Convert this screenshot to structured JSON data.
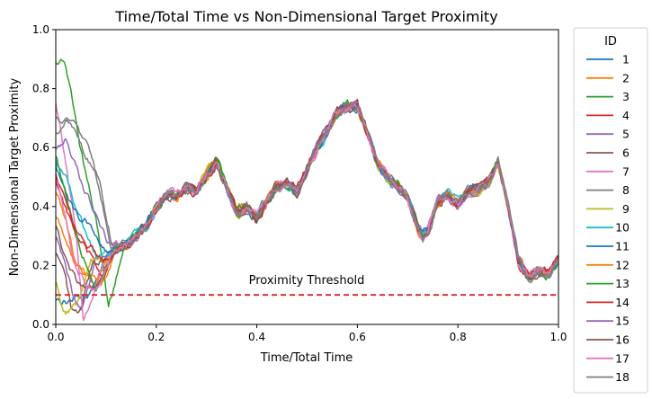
{
  "chart_data": {
    "type": "line",
    "title": "Time/Total Time vs Non-Dimensional Target Proximity",
    "xlabel": "Time/Total Time",
    "ylabel": "Non-Dimensional Target Proximity",
    "xlim": [
      0,
      1
    ],
    "ylim": [
      0,
      1
    ],
    "xticks": [
      "0.0",
      "0.2",
      "0.4",
      "0.6",
      "0.8",
      "1.0"
    ],
    "yticks": [
      "0.0",
      "0.2",
      "0.4",
      "0.6",
      "0.8",
      "1.0"
    ],
    "grid": false,
    "legend": {
      "title": "ID",
      "placement": "outside-right"
    },
    "threshold": {
      "value": 0.1,
      "label": "Proximity Threshold",
      "color": "#d62728",
      "style": "dashed"
    },
    "shared_curve": {
      "x": [
        0.1,
        0.12,
        0.14,
        0.16,
        0.18,
        0.2,
        0.22,
        0.24,
        0.26,
        0.28,
        0.3,
        0.32,
        0.34,
        0.36,
        0.38,
        0.4,
        0.42,
        0.44,
        0.46,
        0.48,
        0.5,
        0.52,
        0.54,
        0.56,
        0.58,
        0.6,
        0.62,
        0.64,
        0.66,
        0.68,
        0.7,
        0.72,
        0.73,
        0.74,
        0.76,
        0.78,
        0.8,
        0.82,
        0.84,
        0.86,
        0.88,
        0.9,
        0.92,
        0.94,
        0.96,
        0.98,
        1.0
      ],
      "y": [
        0.22,
        0.26,
        0.27,
        0.3,
        0.33,
        0.39,
        0.44,
        0.44,
        0.47,
        0.45,
        0.51,
        0.55,
        0.46,
        0.38,
        0.4,
        0.36,
        0.42,
        0.47,
        0.48,
        0.45,
        0.53,
        0.6,
        0.66,
        0.72,
        0.74,
        0.74,
        0.65,
        0.55,
        0.5,
        0.47,
        0.43,
        0.33,
        0.3,
        0.32,
        0.42,
        0.44,
        0.41,
        0.45,
        0.46,
        0.48,
        0.55,
        0.4,
        0.22,
        0.16,
        0.18,
        0.17,
        0.22
      ]
    },
    "series": [
      {
        "name": "1",
        "color": "#1f77b4",
        "start": [
          [
            0.0,
            0.09
          ],
          [
            0.02,
            0.08
          ],
          [
            0.04,
            0.09
          ],
          [
            0.07,
            0.11
          ]
        ]
      },
      {
        "name": "2",
        "color": "#ff7f0e",
        "start": [
          [
            0.0,
            0.37
          ],
          [
            0.02,
            0.28
          ],
          [
            0.04,
            0.2
          ],
          [
            0.06,
            0.17
          ],
          [
            0.08,
            0.14
          ]
        ]
      },
      {
        "name": "3",
        "color": "#2ca02c",
        "start": [
          [
            0.0,
            0.89
          ],
          [
            0.01,
            0.91
          ],
          [
            0.02,
            0.88
          ],
          [
            0.04,
            0.7
          ],
          [
            0.06,
            0.5
          ],
          [
            0.08,
            0.35
          ],
          [
            0.095,
            0.2
          ],
          [
            0.105,
            0.07
          ]
        ]
      },
      {
        "name": "4",
        "color": "#d62728",
        "start": [
          [
            0.0,
            0.49
          ],
          [
            0.02,
            0.4
          ],
          [
            0.04,
            0.3
          ],
          [
            0.07,
            0.22
          ],
          [
            0.09,
            0.17
          ]
        ]
      },
      {
        "name": "5",
        "color": "#9467bd",
        "start": [
          [
            0.0,
            0.3
          ],
          [
            0.02,
            0.2
          ],
          [
            0.035,
            0.1
          ],
          [
            0.05,
            0.05
          ]
        ]
      },
      {
        "name": "6",
        "color": "#8c564b",
        "start": [
          [
            0.0,
            0.24
          ],
          [
            0.02,
            0.14
          ],
          [
            0.03,
            0.05
          ],
          [
            0.045,
            0.03
          ]
        ]
      },
      {
        "name": "7",
        "color": "#e377c2",
        "start": [
          [
            0.0,
            0.75
          ],
          [
            0.02,
            0.55
          ],
          [
            0.04,
            0.3
          ],
          [
            0.05,
            0.1
          ],
          [
            0.055,
            0.01
          ],
          [
            0.065,
            0.06
          ]
        ]
      },
      {
        "name": "8",
        "color": "#7f7f7f",
        "start": [
          [
            0.0,
            0.7
          ],
          [
            0.02,
            0.7
          ],
          [
            0.05,
            0.62
          ],
          [
            0.08,
            0.5
          ],
          [
            0.1,
            0.35
          ],
          [
            0.11,
            0.26
          ]
        ]
      },
      {
        "name": "9",
        "color": "#bcbd22",
        "start": [
          [
            0.0,
            0.14
          ],
          [
            0.01,
            0.08
          ],
          [
            0.02,
            0.05
          ],
          [
            0.04,
            0.06
          ]
        ]
      },
      {
        "name": "10",
        "color": "#17becf",
        "start": [
          [
            0.0,
            0.55
          ],
          [
            0.02,
            0.5
          ],
          [
            0.04,
            0.4
          ],
          [
            0.06,
            0.3
          ],
          [
            0.08,
            0.24
          ]
        ]
      },
      {
        "name": "11",
        "color": "#1f77b4",
        "start": [
          [
            0.0,
            0.53
          ],
          [
            0.03,
            0.4
          ],
          [
            0.05,
            0.35
          ],
          [
            0.07,
            0.35
          ],
          [
            0.09,
            0.28
          ]
        ]
      },
      {
        "name": "12",
        "color": "#ff7f0e",
        "start": [
          [
            0.0,
            0.46
          ],
          [
            0.02,
            0.35
          ],
          [
            0.04,
            0.2
          ],
          [
            0.06,
            0.16
          ],
          [
            0.09,
            0.15
          ]
        ]
      },
      {
        "name": "13",
        "color": "#2ca02c",
        "start": [
          [
            0.0,
            0.58
          ],
          [
            0.02,
            0.44
          ],
          [
            0.04,
            0.3
          ],
          [
            0.06,
            0.2
          ],
          [
            0.08,
            0.12
          ]
        ]
      },
      {
        "name": "14",
        "color": "#d62728",
        "start": [
          [
            0.0,
            0.52
          ],
          [
            0.02,
            0.4
          ],
          [
            0.04,
            0.32
          ],
          [
            0.06,
            0.27
          ],
          [
            0.08,
            0.25
          ],
          [
            0.09,
            0.22
          ]
        ]
      },
      {
        "name": "15",
        "color": "#9467bd",
        "start": [
          [
            0.0,
            0.6
          ],
          [
            0.02,
            0.64
          ],
          [
            0.04,
            0.55
          ],
          [
            0.06,
            0.45
          ],
          [
            0.08,
            0.38
          ],
          [
            0.1,
            0.29
          ]
        ]
      },
      {
        "name": "16",
        "color": "#8c564b",
        "start": [
          [
            0.0,
            0.34
          ],
          [
            0.02,
            0.22
          ],
          [
            0.04,
            0.15
          ],
          [
            0.06,
            0.13
          ],
          [
            0.08,
            0.12
          ]
        ]
      },
      {
        "name": "17",
        "color": "#e377c2",
        "start": [
          [
            0.0,
            0.49
          ],
          [
            0.02,
            0.36
          ],
          [
            0.04,
            0.18
          ],
          [
            0.06,
            0.14
          ],
          [
            0.08,
            0.12
          ]
        ]
      },
      {
        "name": "18",
        "color": "#7f7f7f",
        "start": [
          [
            0.0,
            0.65
          ],
          [
            0.03,
            0.7
          ],
          [
            0.06,
            0.6
          ],
          [
            0.09,
            0.45
          ],
          [
            0.11,
            0.3
          ]
        ]
      }
    ]
  }
}
